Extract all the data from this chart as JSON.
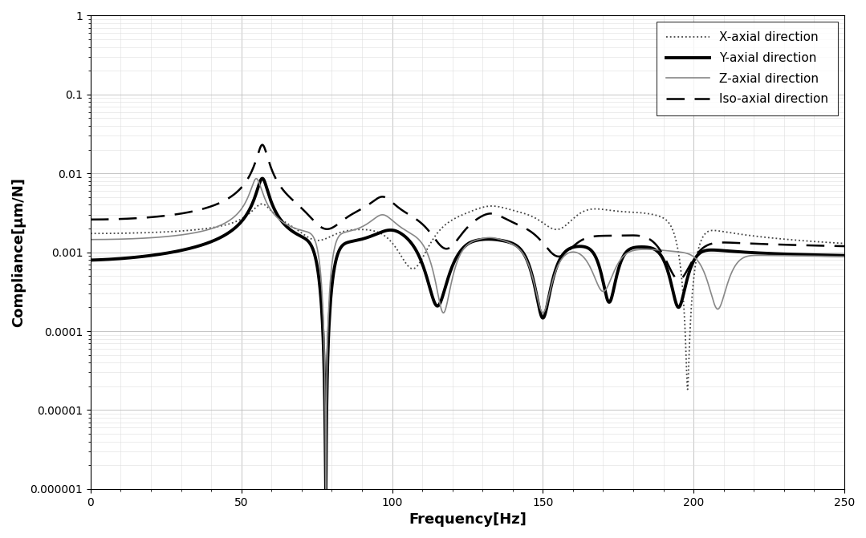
{
  "xlabel": "Frequency[Hz]",
  "ylabel": "Compliance[μm/N]",
  "xlim": [
    0,
    250
  ],
  "ylim": [
    1e-06,
    1
  ],
  "legend": [
    "X-axial direction",
    "Y-axial direction",
    "Z-axial direction",
    "Iso-axial direction"
  ],
  "yticks": [
    1e-06,
    1e-05,
    0.0001,
    0.001,
    0.01,
    0.1,
    1
  ],
  "ytick_labels": [
    "0.000001",
    "0.00001",
    "0.0001",
    "0.001",
    "0.01",
    "0.1",
    "1"
  ],
  "xticks": [
    0,
    50,
    100,
    150,
    200,
    250
  ]
}
